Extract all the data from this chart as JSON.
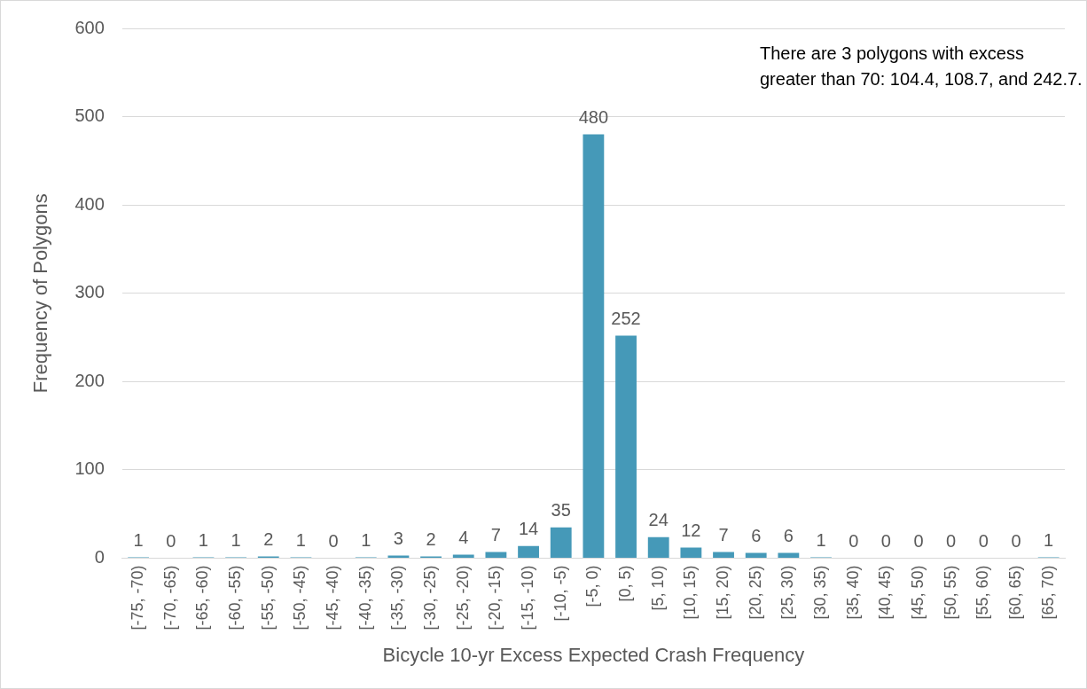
{
  "chart_data": {
    "type": "bar",
    "xlabel": "Bicycle 10-yr Excess Expected Crash Frequency",
    "ylabel": "Frequency of Polygons",
    "categories": [
      "[-75, -70)",
      "[-70, -65)",
      "[-65, -60)",
      "[-60, -55)",
      "[-55, -50)",
      "[-50, -45)",
      "[-45, -40)",
      "[-40, -35)",
      "[-35, -30)",
      "[-30, -25)",
      "[-25, -20)",
      "[-20, -15)",
      "[-15, -10)",
      "[-10, -5)",
      "[-5, 0)",
      "[0, 5)",
      "[5, 10)",
      "[10, 15)",
      "[15, 20)",
      "[20, 25)",
      "[25, 30)",
      "[30, 35)",
      "[35, 40)",
      "[40, 45)",
      "[45, 50)",
      "[50, 55)",
      "[55, 60)",
      "[60, 65)",
      "[65, 70)"
    ],
    "values": [
      1,
      0,
      1,
      1,
      2,
      1,
      0,
      1,
      3,
      2,
      4,
      7,
      14,
      35,
      480,
      252,
      24,
      12,
      7,
      6,
      6,
      1,
      0,
      0,
      0,
      0,
      0,
      0,
      1
    ],
    "color": "#4599b8",
    "ylim": [
      0,
      600
    ],
    "yticks": [
      0,
      100,
      200,
      300,
      400,
      500,
      600
    ],
    "grid": "y",
    "legend": false,
    "data_labels": true,
    "annotations": [
      "There are 3 polygons with excess greater than 70: 104.4, 108.7, and 242.7."
    ]
  }
}
